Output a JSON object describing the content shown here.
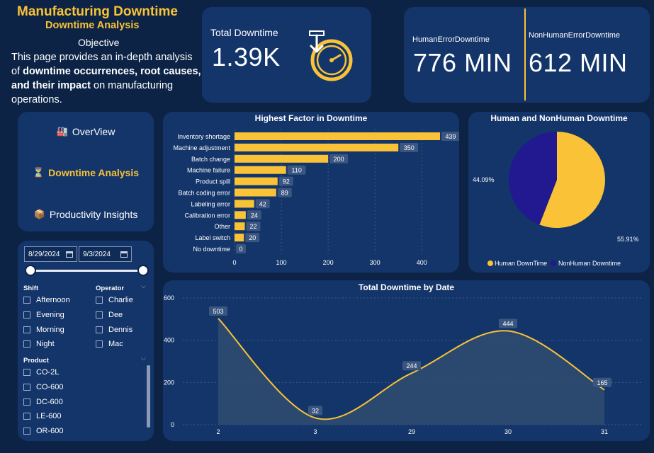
{
  "header": {
    "title": "Manufacturing Downtime",
    "subtitle": "Downtime Analysis",
    "objective_label": "Objective",
    "objective_prefix": "This page provides an in-depth analysis of ",
    "objective_bold": "downtime occurrences, root causes, and their impact",
    "objective_suffix": " on manufacturing operations."
  },
  "kpis": {
    "total_label": "Total Downtime",
    "total_value": "1.39K",
    "human_label": "HumanErrorDowntime",
    "human_value": "776 MIN",
    "nonhuman_label": "NonHumanErrorDowntime",
    "nonhuman_value": "612 MIN"
  },
  "nav": {
    "items": [
      {
        "label": "OverView",
        "icon": "factory-icon"
      },
      {
        "label": "Downtime Analysis",
        "icon": "hourglass-icon"
      },
      {
        "label": "Productivity Insights",
        "icon": "box-icon"
      }
    ]
  },
  "filters": {
    "start_date": "8/29/2024",
    "end_date": "9/3/2024",
    "shift_label": "Shift",
    "shift_options": [
      "Afternoon",
      "Evening",
      "Morning",
      "Night"
    ],
    "operator_label": "Operator",
    "operator_options": [
      "Charlie",
      "Dee",
      "Dennis",
      "Mac"
    ],
    "product_label": "Product",
    "product_options": [
      "CO-2L",
      "CO-600",
      "DC-600",
      "LE-600",
      "OR-600"
    ]
  },
  "colors": {
    "accent": "#f9c237",
    "navy": "#22188f",
    "card": "#14356a",
    "background": "#0c2346"
  },
  "chart_data": [
    {
      "type": "bar",
      "title": "Highest Factor in Downtime",
      "categories": [
        "Inventory shortage",
        "Machine adjustment",
        "Batch change",
        "Machine failure",
        "Product spill",
        "Batch coding error",
        "Labeling error",
        "Calibration error",
        "Other",
        "Label switch",
        "No downtime"
      ],
      "values": [
        439,
        350,
        200,
        110,
        92,
        89,
        42,
        24,
        22,
        20,
        0
      ],
      "xticks": [
        0,
        100,
        200,
        300,
        400
      ],
      "xlim": [
        0,
        460
      ],
      "orientation": "horizontal"
    },
    {
      "type": "pie",
      "title": "Human and NonHuman Downtime",
      "labels": [
        "Human DownTime",
        "NonHuman Downtime"
      ],
      "values": [
        55.91,
        44.09
      ],
      "value_labels": [
        "55.91%",
        "44.09%"
      ],
      "colors": [
        "#f9c237",
        "#22188f"
      ],
      "legend": "bottom"
    },
    {
      "type": "area",
      "title": "Total Downtime by Date",
      "x": [
        "2",
        "3",
        "29",
        "30",
        "31"
      ],
      "values": [
        503,
        32,
        244,
        444,
        165
      ],
      "yticks": [
        0,
        200,
        400,
        600
      ],
      "ylim": [
        0,
        600
      ],
      "grid": true
    }
  ]
}
